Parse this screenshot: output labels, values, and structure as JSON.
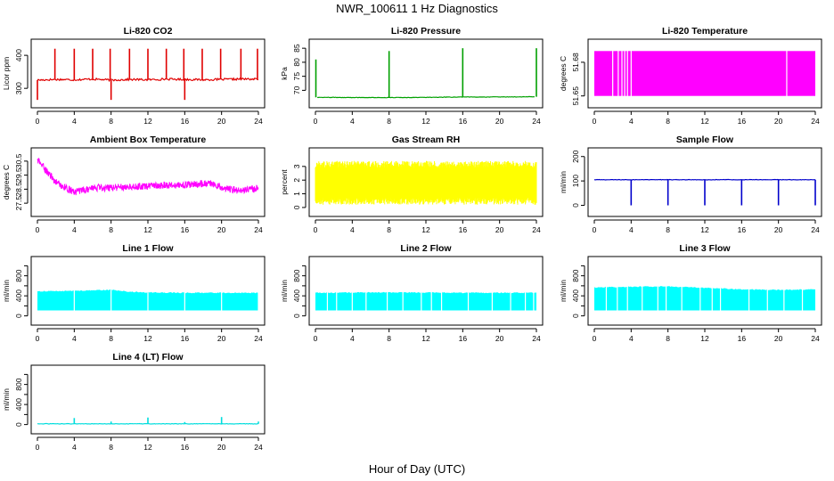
{
  "figure": {
    "title": "NWR_100611  1 Hz Diagnostics",
    "xlabel": "Hour of Day (UTC)"
  },
  "chart_data": [
    {
      "type": "line",
      "title": "Li-820 CO2",
      "ylabel": "Licor ppm",
      "color": "#e00000",
      "xlim": [
        0,
        24
      ],
      "ylim": [
        260,
        430
      ],
      "xticks": [
        0,
        4,
        8,
        12,
        16,
        20,
        24
      ],
      "yticks": [
        300,
        400
      ],
      "series": [
        {
          "kind": "baseline",
          "points": [
            [
              0,
              325
            ],
            [
              2,
              327
            ],
            [
              4,
              326
            ],
            [
              6,
              328
            ],
            [
              8,
              325
            ],
            [
              10,
              327
            ],
            [
              12,
              326
            ],
            [
              14,
              328
            ],
            [
              16,
              327
            ],
            [
              18,
              326
            ],
            [
              20,
              327
            ],
            [
              22,
              328
            ],
            [
              24,
              328
            ]
          ]
        },
        {
          "kind": "spikes_up",
          "x": [
            1.9,
            4.0,
            6.0,
            7.9,
            10.0,
            12.0,
            14.0,
            15.9,
            17.9,
            19.9,
            22.1,
            23.9
          ],
          "y": 420
        },
        {
          "kind": "spikes_down",
          "x": [
            0.0,
            8.0,
            16.0
          ],
          "y": 265
        }
      ]
    },
    {
      "type": "line",
      "title": "Li-820 Pressure",
      "ylabel": "kPa",
      "color": "#00a000",
      "xlim": [
        0,
        24
      ],
      "ylim": [
        66,
        86
      ],
      "xticks": [
        0,
        4,
        8,
        12,
        16,
        20,
        24
      ],
      "yticks": [
        70,
        75,
        80,
        85
      ],
      "series": [
        {
          "kind": "baseline",
          "points": [
            [
              0.2,
              67.5
            ],
            [
              8,
              67.4
            ],
            [
              12,
              67.5
            ],
            [
              16,
              67.6
            ],
            [
              23.8,
              67.7
            ]
          ]
        },
        {
          "kind": "spikes_up",
          "x": [
            0.05,
            8.0,
            16.0,
            24.0
          ],
          "y": [
            81,
            84,
            85,
            85
          ]
        }
      ]
    },
    {
      "type": "area",
      "title": "Li-820 Temperature",
      "ylabel": "degrees C",
      "color": "#ff00ff",
      "xlim": [
        0,
        24
      ],
      "ylim": [
        51.645,
        51.695
      ],
      "xticks": [
        0,
        4,
        8,
        12,
        16,
        20,
        24
      ],
      "yticks": [
        51.65,
        51.68
      ],
      "ytick_labels": [
        "51.65",
        "51.68"
      ],
      "series": [
        {
          "kind": "band",
          "lower": 51.65,
          "upper": 51.69
        },
        {
          "kind": "gaps",
          "x": [
            2.0,
            2.6,
            3.0,
            3.3,
            3.6,
            4.0,
            20.9
          ]
        }
      ]
    },
    {
      "type": "line",
      "title": "Ambient Box Temperature",
      "ylabel": "degrees C",
      "color": "#ff00ff",
      "xlim": [
        0,
        24
      ],
      "ylim": [
        27,
        31
      ],
      "xticks": [
        0,
        4,
        8,
        12,
        16,
        20,
        24
      ],
      "yticks": [
        27.5,
        28.5,
        29.5,
        30.5
      ],
      "ytick_labels": [
        "27.5",
        "28.5",
        "29.5",
        "30.5"
      ],
      "series": [
        {
          "kind": "noisy",
          "amp": 0.25,
          "points": [
            [
              0,
              30.6
            ],
            [
              1,
              29.8
            ],
            [
              2,
              29.0
            ],
            [
              3,
              28.6
            ],
            [
              4,
              28.3
            ],
            [
              5,
              28.4
            ],
            [
              6,
              28.6
            ],
            [
              8,
              28.6
            ],
            [
              10,
              28.7
            ],
            [
              12,
              28.7
            ],
            [
              14,
              28.8
            ],
            [
              16,
              28.8
            ],
            [
              18,
              28.9
            ],
            [
              19,
              28.9
            ],
            [
              20,
              28.6
            ],
            [
              22,
              28.4
            ],
            [
              24,
              28.6
            ]
          ]
        }
      ]
    },
    {
      "type": "area",
      "title": "Gas Stream RH",
      "ylabel": "percent",
      "color": "#ffff00",
      "xlim": [
        0,
        24
      ],
      "ylim": [
        -0.2,
        3.9
      ],
      "xticks": [
        0,
        4,
        8,
        12,
        16,
        20,
        24
      ],
      "yticks": [
        0,
        1,
        2,
        3
      ],
      "series": [
        {
          "kind": "noise_band",
          "lower": 0.2,
          "upper": 3.4
        }
      ]
    },
    {
      "type": "line",
      "title": "Sample Flow",
      "ylabel": "ml/min",
      "color": "#0000cc",
      "xlim": [
        0,
        24
      ],
      "ylim": [
        -20,
        210
      ],
      "xticks": [
        0,
        4,
        8,
        12,
        16,
        20,
        24
      ],
      "yticks": [
        0,
        100,
        200
      ],
      "series": [
        {
          "kind": "baseline",
          "points": [
            [
              0,
              105
            ],
            [
              24,
              105
            ]
          ]
        },
        {
          "kind": "spikes_down",
          "x": [
            4.0,
            8.0,
            12.0,
            16.0,
            20.0,
            24.0
          ],
          "y": 0
        }
      ]
    },
    {
      "type": "area",
      "title": "Line 1 Flow",
      "ylabel": "ml/min",
      "color": "#00ffff",
      "xlim": [
        0,
        24
      ],
      "ylim": [
        -60,
        1060
      ],
      "xticks": [
        0,
        4,
        8,
        12,
        16,
        20,
        24
      ],
      "yticks": [
        0,
        200,
        400,
        600,
        800,
        1000
      ],
      "ytick_labels": [
        "0",
        "",
        "400",
        "",
        "800",
        ""
      ],
      "series": [
        {
          "kind": "band_top",
          "lower": 110,
          "points": [
            [
              0,
              490
            ],
            [
              4,
              500
            ],
            [
              8,
              520
            ],
            [
              10,
              480
            ],
            [
              12,
              470
            ],
            [
              16,
              460
            ],
            [
              20,
              460
            ],
            [
              24,
              460
            ]
          ]
        },
        {
          "kind": "gaps",
          "x": [
            4.0,
            8.0,
            12.0,
            16.0,
            20.0,
            24.0
          ]
        }
      ]
    },
    {
      "type": "area",
      "title": "Line 2 Flow",
      "ylabel": "ml/min",
      "color": "#00ffff",
      "xlim": [
        0,
        24
      ],
      "ylim": [
        -60,
        1060
      ],
      "xticks": [
        0,
        4,
        8,
        12,
        16,
        20,
        24
      ],
      "yticks": [
        0,
        200,
        400,
        600,
        800,
        1000
      ],
      "ytick_labels": [
        "0",
        "",
        "400",
        "",
        "800",
        ""
      ],
      "series": [
        {
          "kind": "band_top",
          "lower": 110,
          "points": [
            [
              0,
              460
            ],
            [
              8,
              470
            ],
            [
              16,
              460
            ],
            [
              24,
              460
            ]
          ]
        },
        {
          "kind": "gaps",
          "x": [
            1.3,
            2.3,
            4.0,
            5.5,
            7.8,
            9.5,
            11.5,
            12.6,
            13.7,
            16.6,
            19.2,
            21.2,
            22.8,
            23.7
          ]
        }
      ]
    },
    {
      "type": "area",
      "title": "Line 3 Flow",
      "ylabel": "ml/min",
      "color": "#00ffff",
      "xlim": [
        0,
        24
      ],
      "ylim": [
        -60,
        1060
      ],
      "xticks": [
        0,
        4,
        8,
        12,
        16,
        20,
        24
      ],
      "yticks": [
        0,
        200,
        400,
        600,
        800,
        1000
      ],
      "ytick_labels": [
        "0",
        "",
        "400",
        "",
        "800",
        ""
      ],
      "series": [
        {
          "kind": "band_top",
          "lower": 110,
          "points": [
            [
              0,
              570
            ],
            [
              4,
              580
            ],
            [
              8,
              590
            ],
            [
              12,
              560
            ],
            [
              16,
              530
            ],
            [
              20,
              520
            ],
            [
              24,
              530
            ]
          ]
        },
        {
          "kind": "gaps",
          "x": [
            1.3,
            2.5,
            3.6,
            5.2,
            6.9,
            7.8,
            9.5,
            11.5,
            12.8,
            13.7,
            16.8,
            18.8,
            20.6,
            22.6
          ]
        }
      ]
    },
    {
      "type": "line",
      "title": "Line 4 (LT) Flow",
      "ylabel": "ml/min",
      "color": "#00dddd",
      "xlim": [
        0,
        24
      ],
      "ylim": [
        -60,
        1060
      ],
      "xticks": [
        0,
        4,
        8,
        12,
        16,
        20,
        24
      ],
      "yticks": [
        0,
        200,
        400,
        600,
        800,
        1000
      ],
      "ytick_labels": [
        "0",
        "",
        "400",
        "",
        "800",
        ""
      ],
      "series": [
        {
          "kind": "baseline",
          "points": [
            [
              0,
              15
            ],
            [
              24,
              15
            ]
          ]
        },
        {
          "kind": "spikes_up",
          "x": [
            4.0,
            8.0,
            12.0,
            16.0,
            20.0,
            24.0
          ],
          "y": [
            130,
            60,
            140,
            50,
            150,
            60
          ]
        }
      ]
    }
  ]
}
